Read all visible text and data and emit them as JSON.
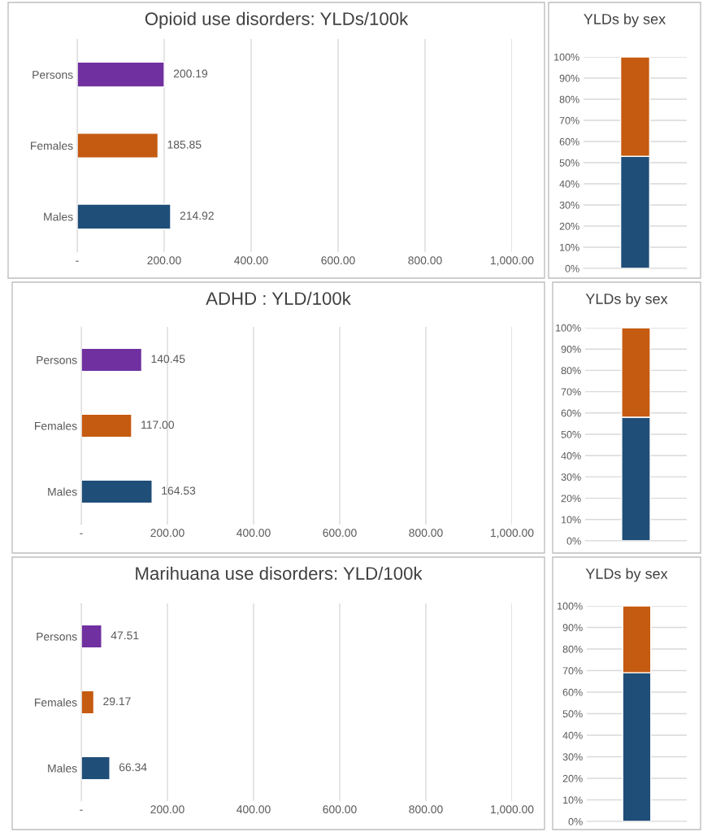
{
  "chart_data": [
    {
      "type": "bar",
      "orientation": "horizontal",
      "title": "Opioid use disorders: YLDs/100k",
      "categories": [
        "Persons",
        "Females",
        "Males"
      ],
      "values": [
        200.19,
        185.85,
        214.92
      ],
      "colors": [
        "#7030a0",
        "#c55a11",
        "#1f4e79"
      ],
      "value_labels": [
        "200.19",
        "185.85",
        "214.92"
      ],
      "xlim": [
        0,
        1000
      ],
      "xticks": [
        {
          "value": 0,
          "label": "-"
        },
        {
          "value": 200,
          "label": "200.00"
        },
        {
          "value": 400,
          "label": "400.00"
        },
        {
          "value": 600,
          "label": "600.00"
        },
        {
          "value": 800,
          "label": "800.00"
        },
        {
          "value": 1000,
          "label": "1,000.00"
        }
      ],
      "grid": "x"
    },
    {
      "type": "bar",
      "stacked": true,
      "title": "YLDs by sex",
      "categories": [
        null
      ],
      "series": [
        {
          "color": "#1f4e79",
          "values": [
            53
          ]
        },
        {
          "color": "#c55a11",
          "values": [
            47
          ]
        }
      ],
      "ylim": [
        0,
        100
      ],
      "yticks": [
        {
          "value": 0,
          "label": "0%"
        },
        {
          "value": 10,
          "label": "10%"
        },
        {
          "value": 20,
          "label": "20%"
        },
        {
          "value": 30,
          "label": "30%"
        },
        {
          "value": 40,
          "label": "40%"
        },
        {
          "value": 50,
          "label": "50%"
        },
        {
          "value": 60,
          "label": "60%"
        },
        {
          "value": 70,
          "label": "70%"
        },
        {
          "value": 80,
          "label": "80%"
        },
        {
          "value": 90,
          "label": "90%"
        },
        {
          "value": 100,
          "label": "100%"
        }
      ],
      "grid": "y"
    },
    {
      "type": "bar",
      "orientation": "horizontal",
      "title": "ADHD : YLD/100k",
      "categories": [
        "Persons",
        "Females",
        "Males"
      ],
      "values": [
        140.45,
        117.0,
        164.53
      ],
      "colors": [
        "#7030a0",
        "#c55a11",
        "#1f4e79"
      ],
      "value_labels": [
        "140.45",
        "117.00",
        "164.53"
      ],
      "xlim": [
        0,
        1000
      ],
      "xticks": [
        {
          "value": 0,
          "label": "-"
        },
        {
          "value": 200,
          "label": "200.00"
        },
        {
          "value": 400,
          "label": "400.00"
        },
        {
          "value": 600,
          "label": "600.00"
        },
        {
          "value": 800,
          "label": "800.00"
        },
        {
          "value": 1000,
          "label": "1,000.00"
        }
      ],
      "grid": "x"
    },
    {
      "type": "bar",
      "stacked": true,
      "title": "YLDs by sex",
      "categories": [
        null
      ],
      "series": [
        {
          "color": "#1f4e79",
          "values": [
            58
          ]
        },
        {
          "color": "#c55a11",
          "values": [
            42
          ]
        }
      ],
      "ylim": [
        0,
        100
      ],
      "yticks": [
        {
          "value": 0,
          "label": "0%"
        },
        {
          "value": 10,
          "label": "10%"
        },
        {
          "value": 20,
          "label": "20%"
        },
        {
          "value": 30,
          "label": "30%"
        },
        {
          "value": 40,
          "label": "40%"
        },
        {
          "value": 50,
          "label": "50%"
        },
        {
          "value": 60,
          "label": "60%"
        },
        {
          "value": 70,
          "label": "70%"
        },
        {
          "value": 80,
          "label": "80%"
        },
        {
          "value": 90,
          "label": "90%"
        },
        {
          "value": 100,
          "label": "100%"
        }
      ],
      "grid": "y"
    },
    {
      "type": "bar",
      "orientation": "horizontal",
      "title": "Marihuana use disorders: YLD/100k",
      "categories": [
        "Persons",
        "Females",
        "Males"
      ],
      "values": [
        47.51,
        29.17,
        66.34
      ],
      "colors": [
        "#7030a0",
        "#c55a11",
        "#1f4e79"
      ],
      "value_labels": [
        "47.51",
        "29.17",
        "66.34"
      ],
      "xlim": [
        0,
        1000
      ],
      "xticks": [
        {
          "value": 0,
          "label": "-"
        },
        {
          "value": 200,
          "label": "200.00"
        },
        {
          "value": 400,
          "label": "400.00"
        },
        {
          "value": 600,
          "label": "600.00"
        },
        {
          "value": 800,
          "label": "800.00"
        },
        {
          "value": 1000,
          "label": "1,000.00"
        }
      ],
      "grid": "x"
    },
    {
      "type": "bar",
      "stacked": true,
      "title": "YLDs by sex",
      "categories": [
        null
      ],
      "series": [
        {
          "color": "#1f4e79",
          "values": [
            69
          ]
        },
        {
          "color": "#c55a11",
          "values": [
            31
          ]
        }
      ],
      "ylim": [
        0,
        100
      ],
      "yticks": [
        {
          "value": 0,
          "label": "0%"
        },
        {
          "value": 10,
          "label": "10%"
        },
        {
          "value": 20,
          "label": "20%"
        },
        {
          "value": 30,
          "label": "30%"
        },
        {
          "value": 40,
          "label": "40%"
        },
        {
          "value": 50,
          "label": "50%"
        },
        {
          "value": 60,
          "label": "60%"
        },
        {
          "value": 70,
          "label": "70%"
        },
        {
          "value": 80,
          "label": "80%"
        },
        {
          "value": 90,
          "label": "90%"
        },
        {
          "value": 100,
          "label": "100%"
        }
      ],
      "grid": "y"
    }
  ]
}
